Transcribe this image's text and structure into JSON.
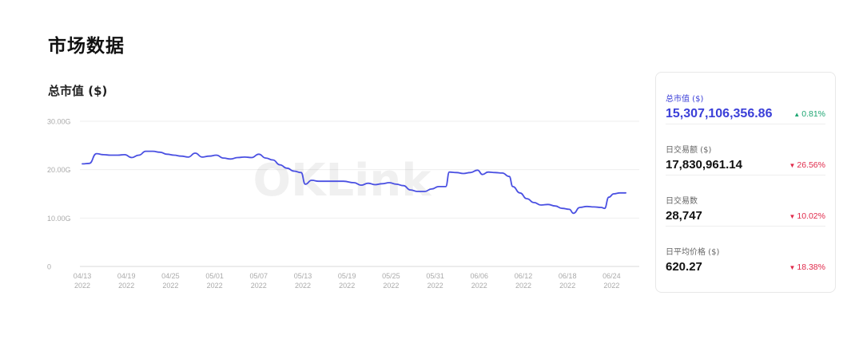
{
  "page": {
    "title": "市场数据"
  },
  "chart_data": {
    "type": "line",
    "title": "总市值 ($)",
    "watermark": "OKLink",
    "line_color": "#4a50e2",
    "ylim": [
      0,
      30
    ],
    "y_ticks": [
      {
        "value": 30,
        "label": "30.00G"
      },
      {
        "value": 20,
        "label": "20.00G"
      },
      {
        "value": 10,
        "label": "10.00G"
      },
      {
        "value": 0,
        "label": "0"
      }
    ],
    "x_ticks": [
      "04/13",
      "04/19",
      "04/25",
      "05/01",
      "05/07",
      "05/13",
      "05/19",
      "05/25",
      "05/31",
      "06/06",
      "06/12",
      "06/18",
      "06/24"
    ],
    "x_tick_year": "2022",
    "xlim": [
      0,
      75
    ],
    "series": [
      {
        "values": [
          [
            0,
            21.2
          ],
          [
            1,
            21.3
          ],
          [
            2,
            23.3
          ],
          [
            3,
            23.1
          ],
          [
            4,
            23.0
          ],
          [
            5,
            23.0
          ],
          [
            6,
            23.1
          ],
          [
            7,
            22.5
          ],
          [
            8,
            23.0
          ],
          [
            9,
            23.8
          ],
          [
            10,
            23.8
          ],
          [
            11,
            23.6
          ],
          [
            12,
            23.2
          ],
          [
            13,
            23.0
          ],
          [
            14,
            22.8
          ],
          [
            15,
            22.6
          ],
          [
            16,
            23.4
          ],
          [
            17,
            22.6
          ],
          [
            18,
            22.8
          ],
          [
            19,
            23.0
          ],
          [
            20,
            22.4
          ],
          [
            21,
            22.2
          ],
          [
            22,
            22.5
          ],
          [
            23,
            22.6
          ],
          [
            24,
            22.5
          ],
          [
            25,
            23.2
          ],
          [
            26,
            22.4
          ],
          [
            27,
            22.0
          ],
          [
            28,
            21.0
          ],
          [
            29,
            20.3
          ],
          [
            30,
            19.7
          ],
          [
            31,
            19.4
          ],
          [
            31.6,
            17.0
          ],
          [
            32.5,
            17.8
          ],
          [
            33.5,
            17.6
          ],
          [
            35,
            17.6
          ],
          [
            37,
            17.6
          ],
          [
            38.5,
            17.3
          ],
          [
            39.5,
            16.8
          ],
          [
            40.5,
            17.2
          ],
          [
            41.5,
            16.9
          ],
          [
            42.5,
            17.1
          ],
          [
            43.5,
            17.3
          ],
          [
            44.5,
            17.0
          ],
          [
            45.5,
            16.7
          ],
          [
            46.5,
            15.8
          ],
          [
            47.5,
            15.5
          ],
          [
            48.5,
            15.5
          ],
          [
            49.5,
            16.0
          ],
          [
            50.5,
            16.5
          ],
          [
            51.5,
            16.5
          ],
          [
            52,
            19.5
          ],
          [
            53,
            19.4
          ],
          [
            54,
            19.2
          ],
          [
            55,
            19.4
          ],
          [
            56,
            19.9
          ],
          [
            56.7,
            19.0
          ],
          [
            57.5,
            19.5
          ],
          [
            58.5,
            19.4
          ],
          [
            59.5,
            19.3
          ],
          [
            60.5,
            18.6
          ],
          [
            61,
            16.5
          ],
          [
            62,
            15.2
          ],
          [
            63,
            14.0
          ],
          [
            64,
            13.2
          ],
          [
            65,
            12.7
          ],
          [
            66,
            12.8
          ],
          [
            67,
            12.5
          ],
          [
            68,
            12.0
          ],
          [
            69,
            11.8
          ],
          [
            69.6,
            11.0
          ],
          [
            70.5,
            12.2
          ],
          [
            71.5,
            12.4
          ],
          [
            72.5,
            12.3
          ],
          [
            73.5,
            12.2
          ],
          [
            74,
            12.0
          ],
          [
            74.6,
            14.3
          ],
          [
            75.3,
            15.0
          ],
          [
            76.2,
            15.2
          ],
          [
            77,
            15.2
          ]
        ]
      }
    ]
  },
  "stats": [
    {
      "label": "总市值 ($)",
      "value": "15,307,106,356.86",
      "change": "0.81%",
      "direction": "up",
      "color": "#1ea672"
    },
    {
      "label": "日交易额 ($)",
      "value": "17,830,961.14",
      "change": "26.56%",
      "direction": "down",
      "color": "#e0294a"
    },
    {
      "label": "日交易数",
      "value": "28,747",
      "change": "10.02%",
      "direction": "down",
      "color": "#e0294a"
    },
    {
      "label": "日平均价格 ($)",
      "value": "620.27",
      "change": "18.38%",
      "direction": "down",
      "color": "#e0294a"
    }
  ],
  "icons": {
    "up": "triangle-up-icon",
    "down": "triangle-down-icon"
  }
}
